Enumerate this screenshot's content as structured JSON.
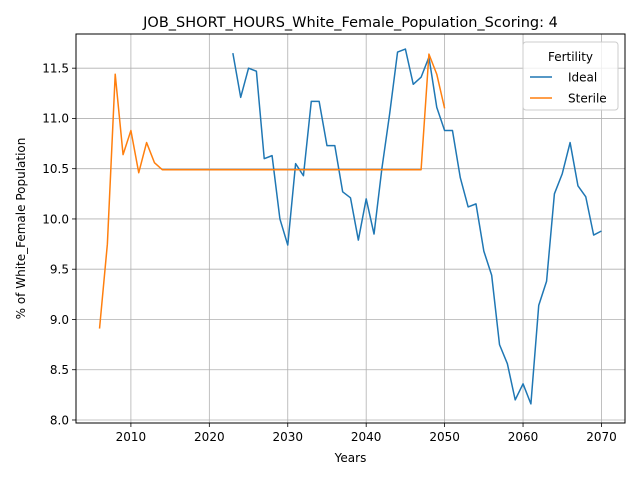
{
  "chart_data": {
    "type": "line",
    "title": "JOB_SHORT_HOURS_White_Female_Population_Scoring: 4",
    "xlabel": "Years",
    "ylabel": "% of White_Female Population",
    "xlim": [
      2003,
      2073
    ],
    "ylim": [
      7.97,
      11.84
    ],
    "xticks": [
      2010,
      2020,
      2030,
      2040,
      2050,
      2060,
      2070
    ],
    "yticks": [
      8.0,
      8.5,
      9.0,
      9.5,
      10.0,
      10.5,
      11.0,
      11.5
    ],
    "ytick_labels": [
      "8.0",
      "8.5",
      "9.0",
      "9.5",
      "10.0",
      "10.5",
      "11.0",
      "11.5"
    ],
    "grid": true,
    "legend": {
      "title": "Fertility",
      "placement": "top-right"
    },
    "series": [
      {
        "name": "Ideal",
        "color": "#1f77b4",
        "points": [
          [
            2023,
            11.65
          ],
          [
            2024,
            11.21
          ],
          [
            2025,
            11.5
          ],
          [
            2026,
            11.47
          ],
          [
            2027,
            10.6
          ],
          [
            2028,
            10.63
          ],
          [
            2029,
            10.0
          ],
          [
            2030,
            9.74
          ],
          [
            2031,
            10.55
          ],
          [
            2032,
            10.43
          ],
          [
            2033,
            11.17
          ],
          [
            2034,
            11.17
          ],
          [
            2035,
            10.73
          ],
          [
            2036,
            10.73
          ],
          [
            2037,
            10.27
          ],
          [
            2038,
            10.21
          ],
          [
            2039,
            9.79
          ],
          [
            2040,
            10.2
          ],
          [
            2041,
            9.85
          ],
          [
            2042,
            10.5
          ],
          [
            2043,
            11.05
          ],
          [
            2044,
            11.66
          ],
          [
            2045,
            11.69
          ],
          [
            2046,
            11.34
          ],
          [
            2047,
            11.41
          ],
          [
            2048,
            11.61
          ],
          [
            2049,
            11.11
          ],
          [
            2050,
            10.88
          ],
          [
            2051,
            10.88
          ],
          [
            2052,
            10.41
          ],
          [
            2053,
            10.12
          ],
          [
            2054,
            10.15
          ],
          [
            2055,
            9.68
          ],
          [
            2056,
            9.44
          ],
          [
            2057,
            8.75
          ],
          [
            2058,
            8.56
          ],
          [
            2059,
            8.2
          ],
          [
            2060,
            8.36
          ],
          [
            2061,
            8.16
          ],
          [
            2062,
            9.14
          ],
          [
            2063,
            9.38
          ],
          [
            2064,
            10.25
          ],
          [
            2065,
            10.45
          ],
          [
            2066,
            10.76
          ],
          [
            2067,
            10.33
          ],
          [
            2068,
            10.22
          ],
          [
            2069,
            9.84
          ],
          [
            2070,
            9.88
          ]
        ]
      },
      {
        "name": "Sterile",
        "color": "#ff7f0e",
        "points": [
          [
            2006,
            8.91
          ],
          [
            2007,
            9.75
          ],
          [
            2008,
            11.44
          ],
          [
            2009,
            10.64
          ],
          [
            2010,
            10.88
          ],
          [
            2011,
            10.46
          ],
          [
            2012,
            10.76
          ],
          [
            2013,
            10.56
          ],
          [
            2014,
            10.49
          ],
          [
            2015,
            10.49
          ],
          [
            2020,
            10.49
          ],
          [
            2030,
            10.49
          ],
          [
            2040,
            10.49
          ],
          [
            2047,
            10.49
          ],
          [
            2048,
            11.64
          ],
          [
            2049,
            11.44
          ],
          [
            2050,
            11.1
          ]
        ]
      }
    ]
  }
}
